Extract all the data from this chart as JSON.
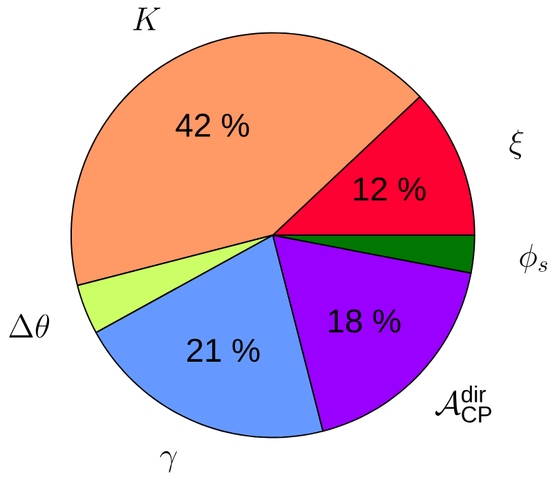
{
  "chart_data": {
    "type": "pie",
    "categories": [
      "\\xi",
      "K",
      "\\Delta\\theta",
      "\\gamma",
      "\\mathcal{A}_{\\rm CP}^{\\rm dir}",
      "\\phi_s"
    ],
    "values": [
      12,
      42,
      4,
      21,
      18,
      3
    ],
    "colors": [
      "#ff0033",
      "#ff9966",
      "#ccff66",
      "#6699ff",
      "#9900ff",
      "#007700"
    ],
    "value_labels": [
      "12 %",
      "42 %",
      null,
      "21 %",
      "18 %",
      null
    ]
  }
}
